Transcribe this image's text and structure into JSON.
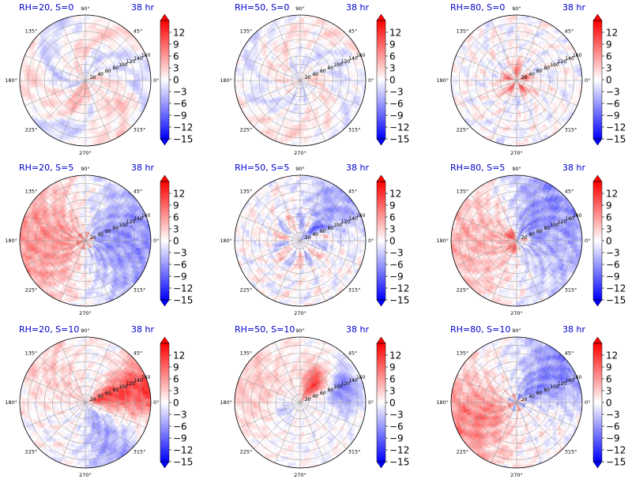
{
  "figure": {
    "colors": {
      "negative": "#0000ff",
      "neutral": "#ffffff",
      "positive": "#ff0000",
      "title": "#0000cc",
      "grid": "#9a9a9a"
    },
    "colorbar": {
      "colormap": "bwr",
      "range": [
        -15,
        15
      ],
      "extend": "both",
      "ticks": [
        "12",
        "9",
        "6",
        "3",
        "0",
        "−3",
        "−6",
        "−9",
        "−12",
        "−15"
      ]
    },
    "polar": {
      "angle_labels": [
        "90°",
        "45°",
        "0°",
        "315°",
        "270°",
        "225°",
        "180°",
        "135°"
      ],
      "radial_labels": [
        "20",
        "40",
        "60",
        "80",
        "100",
        "120",
        "140",
        "160"
      ],
      "r_max": 160
    }
  },
  "chart_data": [
    {
      "type": "heatmap",
      "projection": "polar",
      "title": "RH=20, S=0",
      "time_label": "38 hr",
      "color_range": [
        -15,
        15
      ],
      "pattern": "weak mixed signal, mild positive sector toward 270°"
    },
    {
      "type": "heatmap",
      "projection": "polar",
      "title": "RH=50, S=0",
      "time_label": "38 hr",
      "color_range": [
        -15,
        15
      ],
      "pattern": "weak mixed, near-neutral"
    },
    {
      "type": "heatmap",
      "projection": "polar",
      "title": "RH=80, S=0",
      "time_label": "38 hr",
      "color_range": [
        -15,
        15
      ],
      "pattern": "strong positive ring near center, mixed outer"
    },
    {
      "type": "heatmap",
      "projection": "polar",
      "title": "RH=20, S=5",
      "time_label": "38 hr",
      "color_range": [
        -15,
        15
      ],
      "pattern": "positive west (180°), negative east (0°)"
    },
    {
      "type": "heatmap",
      "projection": "polar",
      "title": "RH=50, S=5",
      "time_label": "38 hr",
      "color_range": [
        -15,
        15
      ],
      "pattern": "mixed, negative to northeast, positive inner ring"
    },
    {
      "type": "heatmap",
      "projection": "polar",
      "title": "RH=80, S=5",
      "time_label": "38 hr",
      "color_range": [
        -15,
        15
      ],
      "pattern": "positive west/core, negative north-east"
    },
    {
      "type": "heatmap",
      "projection": "polar",
      "title": "RH=20, S=10",
      "time_label": "38 hr",
      "color_range": [
        -15,
        15
      ],
      "pattern": "strong positive east (0° to 30°), negative south"
    },
    {
      "type": "heatmap",
      "projection": "polar",
      "title": "RH=50, S=10",
      "time_label": "38 hr",
      "color_range": [
        -15,
        15
      ],
      "pattern": "strong positive northeast, negative north/east ring, positive west"
    },
    {
      "type": "heatmap",
      "projection": "polar",
      "title": "RH=80, S=10",
      "time_label": "38 hr",
      "color_range": [
        -15,
        15
      ],
      "pattern": "positive west/southwest, negative northeast"
    }
  ]
}
